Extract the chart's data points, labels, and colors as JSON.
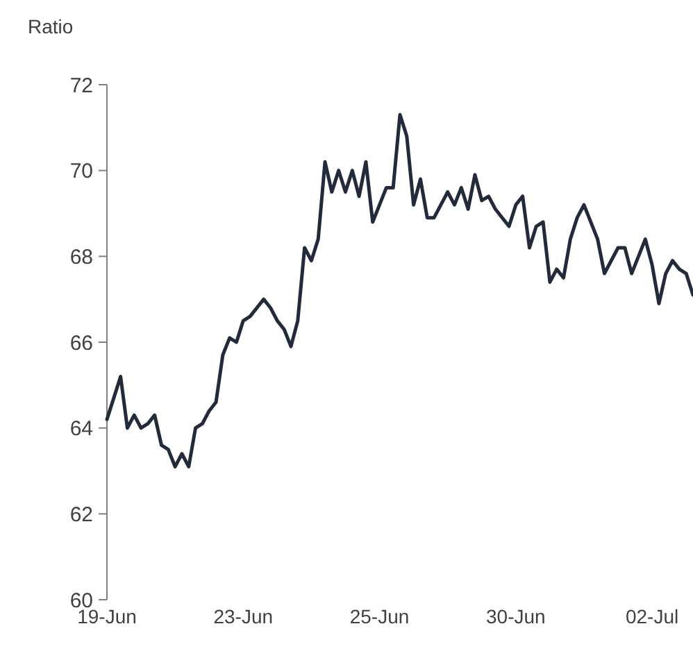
{
  "chart_data": {
    "type": "line",
    "ylabel": "Ratio",
    "categories": [
      "19-Jun",
      null,
      null,
      null,
      null,
      null,
      null,
      null,
      null,
      null,
      null,
      null,
      null,
      null,
      null,
      null,
      null,
      null,
      null,
      null,
      "23-Jun",
      null,
      null,
      null,
      null,
      null,
      null,
      null,
      null,
      null,
      null,
      null,
      null,
      null,
      null,
      null,
      null,
      null,
      null,
      null,
      "25-Jun",
      null,
      null,
      null,
      null,
      null,
      null,
      null,
      null,
      null,
      null,
      null,
      null,
      null,
      null,
      null,
      null,
      null,
      null,
      null,
      "30-Jun",
      null,
      null,
      null,
      null,
      null,
      null,
      null,
      null,
      null,
      null,
      null,
      null,
      null,
      null,
      null,
      null,
      null,
      null,
      null,
      "02-Jul",
      null,
      null,
      null,
      null,
      null,
      null
    ],
    "series": [
      {
        "color": "#232b3a",
        "values": [
          64.2,
          64.7,
          65.2,
          64.0,
          64.3,
          64.0,
          64.1,
          64.3,
          63.6,
          63.5,
          63.1,
          63.4,
          63.1,
          64.0,
          64.1,
          64.4,
          64.6,
          65.7,
          66.1,
          66.0,
          66.5,
          66.6,
          66.8,
          67.0,
          66.8,
          66.5,
          66.3,
          65.9,
          66.5,
          68.2,
          67.9,
          68.4,
          70.2,
          69.5,
          70.0,
          69.5,
          70.0,
          69.4,
          70.2,
          68.8,
          69.2,
          69.6,
          69.6,
          71.3,
          70.8,
          69.2,
          69.8,
          68.9,
          68.9,
          69.2,
          69.5,
          69.2,
          69.6,
          69.1,
          69.9,
          69.3,
          69.4,
          69.1,
          68.9,
          68.7,
          69.2,
          69.4,
          68.2,
          68.7,
          68.8,
          67.4,
          67.7,
          67.5,
          68.4,
          68.9,
          69.2,
          68.8,
          68.4,
          67.6,
          67.9,
          68.2,
          68.2,
          67.6,
          68.0,
          68.4,
          67.8,
          66.9,
          67.6,
          67.9,
          67.7,
          67.6,
          67.1
        ]
      }
    ],
    "ylim": [
      60,
      72
    ],
    "yticks": [
      60,
      62,
      64,
      66,
      68,
      70,
      72
    ],
    "grid": false,
    "marker": "none",
    "line_style": "solid"
  }
}
